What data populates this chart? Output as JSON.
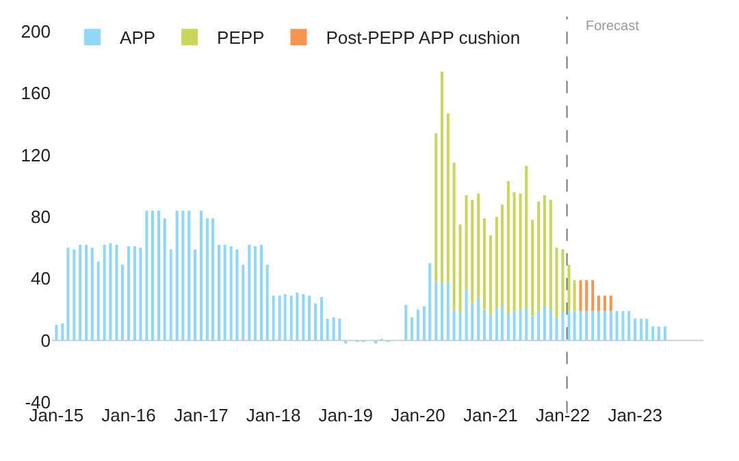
{
  "chart_data": {
    "type": "bar",
    "stacked": true,
    "x": [
      "2015-01",
      "2015-02",
      "2015-03",
      "2015-04",
      "2015-05",
      "2015-06",
      "2015-07",
      "2015-08",
      "2015-09",
      "2015-10",
      "2015-11",
      "2015-12",
      "2016-01",
      "2016-02",
      "2016-03",
      "2016-04",
      "2016-05",
      "2016-06",
      "2016-07",
      "2016-08",
      "2016-09",
      "2016-10",
      "2016-11",
      "2016-12",
      "2017-01",
      "2017-02",
      "2017-03",
      "2017-04",
      "2017-05",
      "2017-06",
      "2017-07",
      "2017-08",
      "2017-09",
      "2017-10",
      "2017-11",
      "2017-12",
      "2018-01",
      "2018-02",
      "2018-03",
      "2018-04",
      "2018-05",
      "2018-06",
      "2018-07",
      "2018-08",
      "2018-09",
      "2018-10",
      "2018-11",
      "2018-12",
      "2019-01",
      "2019-02",
      "2019-03",
      "2019-04",
      "2019-05",
      "2019-06",
      "2019-07",
      "2019-08",
      "2019-09",
      "2019-10",
      "2019-11",
      "2019-12",
      "2020-01",
      "2020-02",
      "2020-03",
      "2020-04",
      "2020-05",
      "2020-06",
      "2020-07",
      "2020-08",
      "2020-09",
      "2020-10",
      "2020-11",
      "2020-12",
      "2021-01",
      "2021-02",
      "2021-03",
      "2021-04",
      "2021-05",
      "2021-06",
      "2021-07",
      "2021-08",
      "2021-09",
      "2021-10",
      "2021-11",
      "2021-12",
      "2022-01",
      "2022-02",
      "2022-03",
      "2022-04",
      "2022-05",
      "2022-06",
      "2022-07",
      "2022-08",
      "2022-09",
      "2022-10",
      "2022-11",
      "2022-12",
      "2023-01",
      "2023-02",
      "2023-03",
      "2023-04",
      "2023-05",
      "2023-06"
    ],
    "series": [
      {
        "name": "APP",
        "color": "#8fd8f8",
        "values": [
          10,
          11,
          60,
          59,
          62,
          62,
          60,
          51,
          62,
          63,
          62,
          49,
          61,
          61,
          60,
          84,
          84,
          84,
          79,
          59,
          84,
          84,
          84,
          59,
          84,
          79,
          79,
          62,
          62,
          61,
          59,
          49,
          62,
          61,
          62,
          49,
          29,
          29,
          30,
          29,
          31,
          30,
          29,
          24,
          28,
          14,
          15,
          14,
          -2,
          0,
          -1,
          -1,
          0,
          -2,
          1,
          -1,
          0,
          0,
          23,
          15,
          20,
          22,
          50,
          38,
          37,
          38,
          20,
          18,
          33,
          24,
          27,
          20,
          17,
          21,
          22,
          18,
          19,
          20,
          21,
          16,
          19,
          22,
          20,
          15,
          18,
          19,
          19,
          19,
          19,
          19,
          19,
          19,
          19,
          19,
          19,
          19,
          14,
          14,
          14,
          9,
          9,
          9
        ]
      },
      {
        "name": "PEPP",
        "color": "#c8d65a",
        "values": [
          null,
          null,
          null,
          null,
          null,
          null,
          null,
          null,
          null,
          null,
          null,
          null,
          null,
          null,
          null,
          null,
          null,
          null,
          null,
          null,
          null,
          null,
          null,
          null,
          null,
          null,
          null,
          null,
          null,
          null,
          null,
          null,
          null,
          null,
          null,
          null,
          null,
          null,
          null,
          null,
          null,
          null,
          null,
          null,
          null,
          null,
          null,
          null,
          null,
          null,
          null,
          null,
          null,
          null,
          null,
          null,
          null,
          null,
          null,
          null,
          null,
          null,
          null,
          96,
          137,
          109,
          95,
          57,
          61,
          67,
          68,
          59,
          51,
          59,
          66,
          85,
          77,
          75,
          92,
          62,
          71,
          72,
          71,
          45,
          41,
          30,
          20,
          null,
          null,
          null,
          null,
          null,
          null,
          null,
          null,
          null,
          null,
          null,
          null,
          null,
          null,
          null
        ]
      },
      {
        "name": "Post-PEPP APP cushion",
        "color": "#f79450",
        "values": [
          null,
          null,
          null,
          null,
          null,
          null,
          null,
          null,
          null,
          null,
          null,
          null,
          null,
          null,
          null,
          null,
          null,
          null,
          null,
          null,
          null,
          null,
          null,
          null,
          null,
          null,
          null,
          null,
          null,
          null,
          null,
          null,
          null,
          null,
          null,
          null,
          null,
          null,
          null,
          null,
          null,
          null,
          null,
          null,
          null,
          null,
          null,
          null,
          null,
          null,
          null,
          null,
          null,
          null,
          null,
          null,
          null,
          null,
          null,
          null,
          null,
          null,
          null,
          null,
          null,
          null,
          null,
          null,
          null,
          null,
          null,
          null,
          null,
          null,
          null,
          null,
          null,
          null,
          null,
          null,
          null,
          null,
          null,
          null,
          null,
          null,
          null,
          20,
          20,
          20,
          10,
          10,
          10,
          null,
          null,
          null,
          null,
          null,
          null,
          null,
          null,
          null
        ]
      }
    ],
    "xlim": [
      "2014-12-10",
      "2023-12-12"
    ],
    "xticks": [
      {
        "value": "2015-01",
        "label": "Jan-15"
      },
      {
        "value": "2016-01",
        "label": "Jan-16"
      },
      {
        "value": "2017-01",
        "label": "Jan-17"
      },
      {
        "value": "2018-01",
        "label": "Jan-18"
      },
      {
        "value": "2019-01",
        "label": "Jan-19"
      },
      {
        "value": "2020-01",
        "label": "Jan-20"
      },
      {
        "value": "2021-01",
        "label": "Jan-21"
      },
      {
        "value": "2022-01",
        "label": "Jan-22"
      },
      {
        "value": "2023-01",
        "label": "Jan-23"
      }
    ],
    "ylim": [
      -40,
      200
    ],
    "yticks": [
      -40,
      0,
      40,
      80,
      120,
      160,
      200
    ],
    "ref_lines": [
      {
        "axis": "y",
        "value": 0,
        "color": "#d0d0d0",
        "line_style": "solid"
      },
      {
        "axis": "x",
        "value": "2022-01-22",
        "label": "Forecast",
        "color": "#777777",
        "line_style": "dashed"
      }
    ],
    "grid": false,
    "legend": "top left"
  }
}
